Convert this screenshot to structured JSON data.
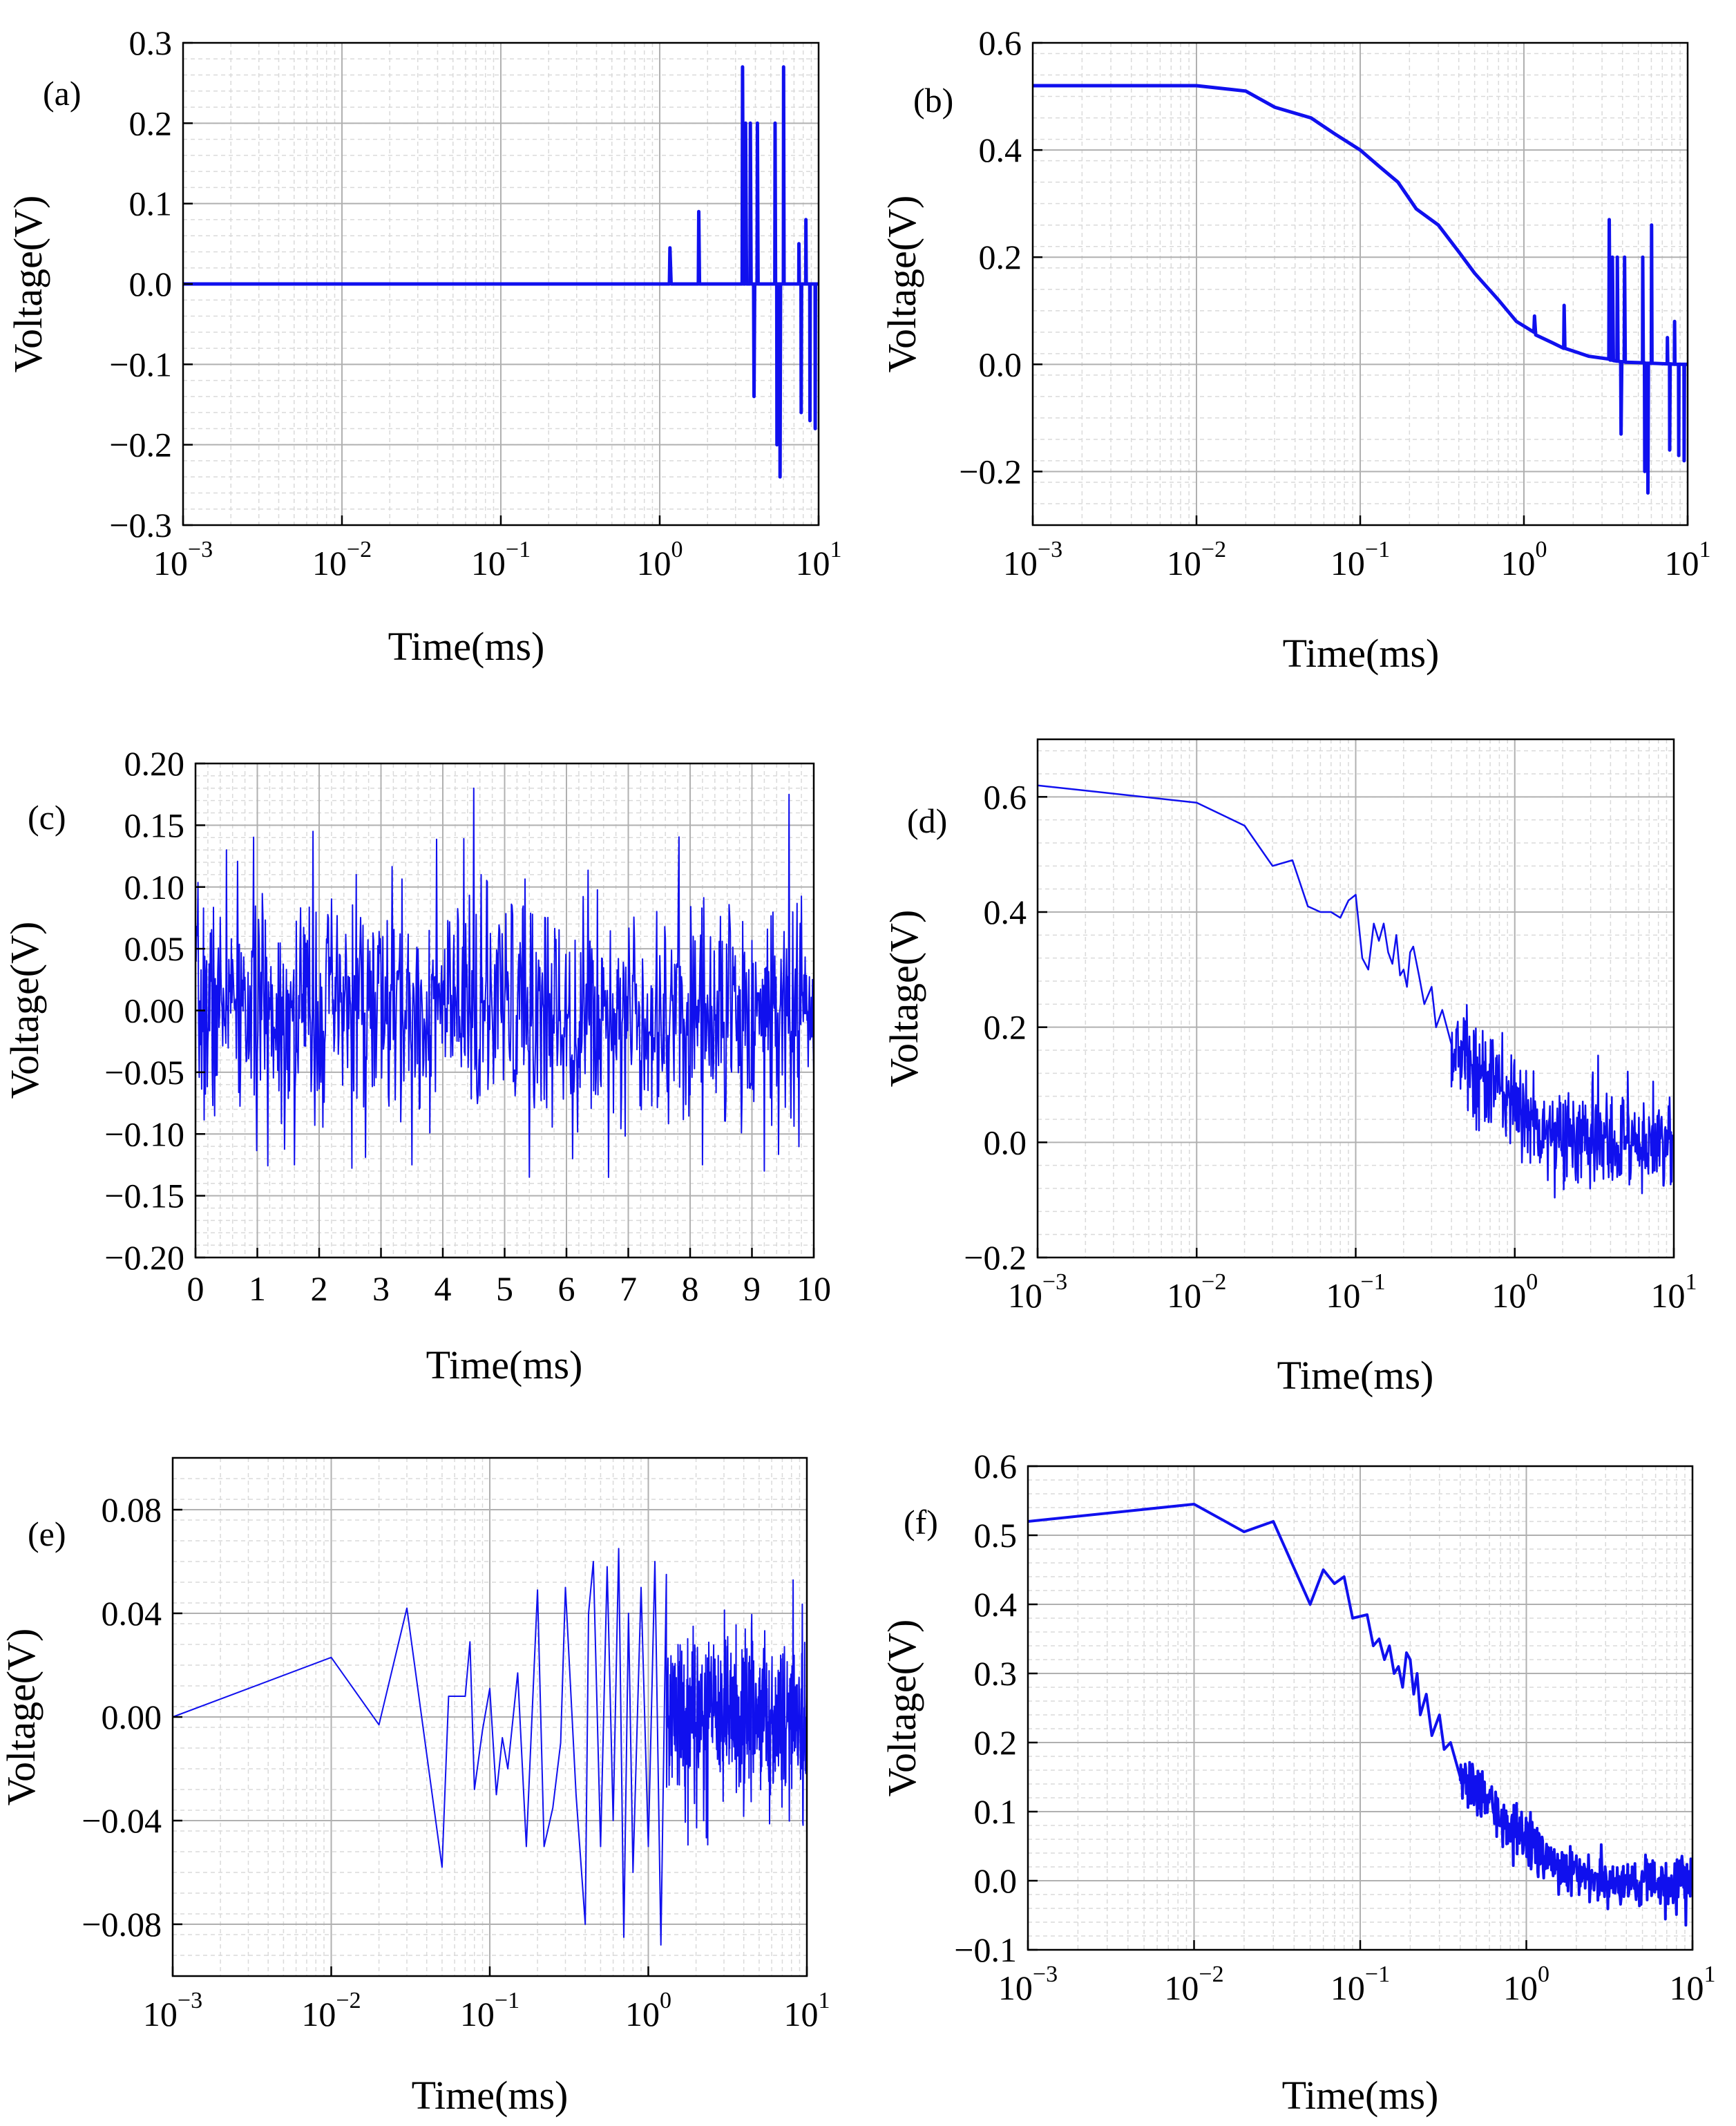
{
  "figure": {
    "type": "multi-panel time-series",
    "panel_count": 6
  },
  "colors": {
    "line": "#1010ee",
    "grid_major": "#b0b0b0",
    "grid_minor": "#dadada",
    "axis": "#000000"
  },
  "chart_data": [
    {
      "id": "a",
      "panel_label": "(a)",
      "type": "line",
      "xscale": "log",
      "xlim": [
        0.001,
        10
      ],
      "ylim": [
        -0.3,
        0.3
      ],
      "xlabel": "Time(ms)",
      "ylabel": "Voltage(V)",
      "xticks": [
        0.001,
        0.01,
        0.1,
        1,
        10
      ],
      "xtick_labels": [
        [
          "10",
          "−3"
        ],
        [
          "10",
          "−2"
        ],
        [
          "10",
          "−1"
        ],
        [
          "10",
          "0"
        ],
        [
          "10",
          "1"
        ]
      ],
      "yticks": [
        -0.3,
        -0.2,
        -0.1,
        0.0,
        0.1,
        0.2,
        0.3
      ],
      "ytick_labels": [
        "−0.3",
        "−0.2",
        "−0.1",
        "0.0",
        "0.1",
        "0.2",
        "0.3"
      ],
      "line_width": 5,
      "points": [
        [
          0.001,
          0.0
        ],
        [
          1.15,
          0.0
        ],
        [
          1.16,
          0.045
        ],
        [
          1.18,
          0.0
        ],
        [
          1.75,
          0.0
        ],
        [
          1.76,
          0.09
        ],
        [
          1.78,
          0.0
        ],
        [
          3.3,
          0.0
        ],
        [
          3.32,
          0.27
        ],
        [
          3.36,
          0.0
        ],
        [
          3.45,
          0.0
        ],
        [
          3.47,
          0.2
        ],
        [
          3.52,
          0.0
        ],
        [
          3.7,
          0.0
        ],
        [
          3.72,
          0.2
        ],
        [
          3.76,
          0.0
        ],
        [
          3.9,
          0.0
        ],
        [
          3.92,
          -0.14
        ],
        [
          3.96,
          0.0
        ],
        [
          4.1,
          0.0
        ],
        [
          4.12,
          0.2
        ],
        [
          4.16,
          0.0
        ],
        [
          5.3,
          0.0
        ],
        [
          5.32,
          0.2
        ],
        [
          5.36,
          0.0
        ],
        [
          5.45,
          0.0
        ],
        [
          5.47,
          -0.2
        ],
        [
          5.52,
          0.0
        ],
        [
          5.7,
          0.0
        ],
        [
          5.72,
          -0.24
        ],
        [
          5.76,
          0.0
        ],
        [
          6.0,
          0.0
        ],
        [
          6.02,
          0.27
        ],
        [
          6.06,
          0.0
        ],
        [
          7.5,
          0.0
        ],
        [
          7.52,
          0.05
        ],
        [
          7.56,
          0.0
        ],
        [
          7.75,
          0.0
        ],
        [
          7.77,
          -0.16
        ],
        [
          7.82,
          0.0
        ],
        [
          8.3,
          0.0
        ],
        [
          8.32,
          0.08
        ],
        [
          8.36,
          0.0
        ],
        [
          8.8,
          0.0
        ],
        [
          8.82,
          -0.17
        ],
        [
          8.86,
          0.0
        ],
        [
          9.5,
          0.0
        ],
        [
          9.52,
          -0.18
        ],
        [
          9.56,
          0.0
        ],
        [
          10.0,
          0.0
        ]
      ]
    },
    {
      "id": "b",
      "panel_label": "(b)",
      "type": "line",
      "xscale": "log",
      "xlim": [
        0.001,
        10
      ],
      "ylim": [
        -0.3,
        0.6
      ],
      "xlabel": "Time(ms)",
      "ylabel": "Voltage(V)",
      "xticks": [
        0.001,
        0.01,
        0.1,
        1,
        10
      ],
      "xtick_labels": [
        [
          "10",
          "−3"
        ],
        [
          "10",
          "−2"
        ],
        [
          "10",
          "−1"
        ],
        [
          "10",
          "0"
        ],
        [
          "10",
          "1"
        ]
      ],
      "yticks": [
        -0.2,
        0.0,
        0.2,
        0.4,
        0.6
      ],
      "ytick_labels": [
        "−0.2",
        "0.0",
        "0.2",
        "0.4",
        "0.6"
      ],
      "line_width": 5,
      "points": [
        [
          0.001,
          0.52
        ],
        [
          0.01,
          0.52
        ],
        [
          0.02,
          0.51
        ],
        [
          0.03,
          0.48
        ],
        [
          0.05,
          0.46
        ],
        [
          0.07,
          0.43
        ],
        [
          0.1,
          0.4
        ],
        [
          0.13,
          0.37
        ],
        [
          0.17,
          0.34
        ],
        [
          0.22,
          0.29
        ],
        [
          0.3,
          0.26
        ],
        [
          0.4,
          0.21
        ],
        [
          0.5,
          0.17
        ],
        [
          0.7,
          0.12
        ],
        [
          0.9,
          0.08
        ],
        [
          1.15,
          0.06
        ],
        [
          1.16,
          0.09
        ],
        [
          1.18,
          0.055
        ],
        [
          1.5,
          0.04
        ],
        [
          1.75,
          0.03
        ],
        [
          1.76,
          0.11
        ],
        [
          1.78,
          0.03
        ],
        [
          2.5,
          0.015
        ],
        [
          3.3,
          0.01
        ],
        [
          3.32,
          0.27
        ],
        [
          3.36,
          0.008
        ],
        [
          3.45,
          0.008
        ],
        [
          3.47,
          0.2
        ],
        [
          3.52,
          0.007
        ],
        [
          3.7,
          0.006
        ],
        [
          3.72,
          0.2
        ],
        [
          3.76,
          0.006
        ],
        [
          3.9,
          0.005
        ],
        [
          3.92,
          -0.13
        ],
        [
          3.96,
          0.005
        ],
        [
          4.1,
          0.005
        ],
        [
          4.12,
          0.2
        ],
        [
          4.16,
          0.004
        ],
        [
          5.3,
          0.003
        ],
        [
          5.32,
          0.2
        ],
        [
          5.36,
          0.003
        ],
        [
          5.45,
          0.003
        ],
        [
          5.47,
          -0.2
        ],
        [
          5.52,
          0.002
        ],
        [
          5.7,
          0.002
        ],
        [
          5.72,
          -0.24
        ],
        [
          5.76,
          0.002
        ],
        [
          6.0,
          0.002
        ],
        [
          6.02,
          0.26
        ],
        [
          6.06,
          0.002
        ],
        [
          7.5,
          0.001
        ],
        [
          7.52,
          0.05
        ],
        [
          7.56,
          0.001
        ],
        [
          7.75,
          0.001
        ],
        [
          7.77,
          -0.16
        ],
        [
          7.82,
          0.001
        ],
        [
          8.3,
          0.0
        ],
        [
          8.32,
          0.08
        ],
        [
          8.36,
          0.0
        ],
        [
          8.8,
          0.0
        ],
        [
          8.82,
          -0.17
        ],
        [
          8.86,
          0.0
        ],
        [
          9.5,
          0.0
        ],
        [
          9.52,
          -0.18
        ],
        [
          9.56,
          0.0
        ],
        [
          10.0,
          0.0
        ]
      ]
    },
    {
      "id": "c",
      "panel_label": "(c)",
      "type": "line",
      "xscale": "linear",
      "xlim": [
        0,
        10
      ],
      "ylim": [
        -0.2,
        0.2
      ],
      "xlabel": "Time(ms)",
      "ylabel": "Voltage(V)",
      "xticks": [
        0,
        1,
        2,
        3,
        4,
        5,
        6,
        7,
        8,
        9,
        10
      ],
      "xtick_labels": [
        "0",
        "1",
        "2",
        "3",
        "4",
        "5",
        "6",
        "7",
        "8",
        "9",
        "10"
      ],
      "yticks": [
        -0.2,
        -0.15,
        -0.1,
        -0.05,
        0.0,
        0.05,
        0.1,
        0.15,
        0.2
      ],
      "ytick_labels": [
        "−0.20",
        "−0.15",
        "−0.10",
        "−0.05",
        "0.00",
        "0.05",
        "0.10",
        "0.15",
        "0.20"
      ],
      "line_width": 2,
      "noise": {
        "x_start": 0,
        "x_end": 10,
        "samples": 1000,
        "base": 0.0,
        "sigma": 0.045,
        "seed": 7
      },
      "spikes": [
        [
          0.5,
          0.13
        ],
        [
          1.9,
          0.145
        ],
        [
          2.6,
          0.11
        ],
        [
          4.5,
          0.18
        ],
        [
          9.6,
          0.175
        ],
        [
          3.5,
          -0.125
        ],
        [
          5.4,
          -0.135
        ],
        [
          6.1,
          -0.12
        ],
        [
          8.2,
          -0.125
        ],
        [
          9.2,
          -0.13
        ],
        [
          1.6,
          -0.125
        ]
      ]
    },
    {
      "id": "d",
      "panel_label": "(d)",
      "type": "line",
      "xscale": "log",
      "xlim": [
        0.001,
        10
      ],
      "ylim": [
        -0.2,
        0.7
      ],
      "xlabel": "Time(ms)",
      "ylabel": "Voltage(V)",
      "xticks": [
        0.001,
        0.01,
        0.1,
        1,
        10
      ],
      "xtick_labels": [
        [
          "10",
          "−3"
        ],
        [
          "10",
          "−2"
        ],
        [
          "10",
          "−1"
        ],
        [
          "10",
          "0"
        ],
        [
          "10",
          "1"
        ]
      ],
      "yticks": [
        -0.2,
        0.0,
        0.2,
        0.4,
        0.6
      ],
      "ytick_labels": [
        "−0.2",
        "0.0",
        "0.2",
        "0.4",
        "0.6"
      ],
      "line_width": 2.5,
      "points": [
        [
          0.001,
          0.62
        ],
        [
          0.01,
          0.59
        ],
        [
          0.02,
          0.55
        ],
        [
          0.03,
          0.48
        ],
        [
          0.04,
          0.49
        ],
        [
          0.05,
          0.41
        ],
        [
          0.06,
          0.4
        ],
        [
          0.07,
          0.4
        ],
        [
          0.08,
          0.39
        ],
        [
          0.09,
          0.42
        ],
        [
          0.1,
          0.43
        ],
        [
          0.11,
          0.32
        ],
        [
          0.12,
          0.3
        ],
        [
          0.13,
          0.38
        ],
        [
          0.14,
          0.35
        ],
        [
          0.15,
          0.38
        ],
        [
          0.16,
          0.33
        ],
        [
          0.17,
          0.31
        ],
        [
          0.18,
          0.36
        ],
        [
          0.19,
          0.29
        ],
        [
          0.2,
          0.3
        ],
        [
          0.21,
          0.27
        ],
        [
          0.22,
          0.33
        ],
        [
          0.23,
          0.34
        ],
        [
          0.25,
          0.29
        ],
        [
          0.27,
          0.24
        ],
        [
          0.3,
          0.27
        ],
        [
          0.32,
          0.2
        ],
        [
          0.35,
          0.23
        ],
        [
          0.4,
          0.17
        ]
      ],
      "noise": {
        "x_start": 0.4,
        "x_end": 10,
        "samples": 420,
        "base": "exp-decay 0.17 to 0.0",
        "sigma": 0.045,
        "seed": 13
      }
    },
    {
      "id": "e",
      "panel_label": "(e)",
      "type": "line",
      "xscale": "log",
      "xlim": [
        0.001,
        10
      ],
      "ylim": [
        -0.1,
        0.1
      ],
      "xlabel": "Time(ms)",
      "ylabel": "Voltage(V)",
      "xticks": [
        0.001,
        0.01,
        0.1,
        1,
        10
      ],
      "xtick_labels": [
        [
          "10",
          "−3"
        ],
        [
          "10",
          "−2"
        ],
        [
          "10",
          "−1"
        ],
        [
          "10",
          "0"
        ],
        [
          "10",
          "1"
        ]
      ],
      "yticks": [
        -0.08,
        -0.04,
        0.0,
        0.04,
        0.08
      ],
      "ytick_labels": [
        "−0.08",
        "−0.04",
        "0.00",
        "0.04",
        "0.08"
      ],
      "line_width": 2,
      "points": [
        [
          0.001,
          0.0
        ],
        [
          0.01,
          0.023
        ],
        [
          0.02,
          -0.003
        ],
        [
          0.03,
          0.042
        ],
        [
          0.05,
          -0.058
        ],
        [
          0.055,
          0.008
        ],
        [
          0.06,
          0.008
        ],
        [
          0.07,
          0.008
        ],
        [
          0.075,
          0.029
        ],
        [
          0.08,
          -0.028
        ],
        [
          0.09,
          -0.005
        ],
        [
          0.1,
          0.011
        ],
        [
          0.11,
          -0.03
        ],
        [
          0.12,
          -0.008
        ],
        [
          0.13,
          -0.02
        ],
        [
          0.15,
          0.017
        ],
        [
          0.17,
          -0.05
        ],
        [
          0.2,
          0.049
        ],
        [
          0.22,
          -0.05
        ],
        [
          0.25,
          -0.035
        ],
        [
          0.28,
          -0.01
        ],
        [
          0.3,
          0.05
        ],
        [
          0.35,
          -0.03
        ],
        [
          0.4,
          -0.08
        ],
        [
          0.42,
          0.04
        ],
        [
          0.45,
          0.06
        ],
        [
          0.5,
          -0.05
        ],
        [
          0.55,
          0.058
        ],
        [
          0.6,
          -0.04
        ],
        [
          0.65,
          0.065
        ],
        [
          0.7,
          -0.085
        ],
        [
          0.75,
          0.04
        ],
        [
          0.8,
          -0.06
        ],
        [
          0.9,
          0.05
        ],
        [
          1.0,
          -0.05
        ],
        [
          1.1,
          0.06
        ],
        [
          1.2,
          -0.088
        ],
        [
          1.3,
          0.055
        ]
      ],
      "noise": {
        "x_start": 1.3,
        "x_end": 10,
        "samples": 520,
        "base": 0.0,
        "sigma": 0.016,
        "seed": 21
      }
    },
    {
      "id": "f",
      "panel_label": "(f)",
      "type": "line",
      "xscale": "log",
      "xlim": [
        0.001,
        10
      ],
      "ylim": [
        -0.1,
        0.6
      ],
      "xlabel": "Time(ms)",
      "ylabel": "Voltage(V)",
      "xticks": [
        0.001,
        0.01,
        0.1,
        1,
        10
      ],
      "xtick_labels": [
        [
          "10",
          "−3"
        ],
        [
          "10",
          "−2"
        ],
        [
          "10",
          "−1"
        ],
        [
          "10",
          "0"
        ],
        [
          "10",
          "1"
        ]
      ],
      "yticks": [
        -0.1,
        0.0,
        0.1,
        0.2,
        0.3,
        0.4,
        0.5,
        0.6
      ],
      "ytick_labels": [
        "−0.1",
        "0.0",
        "0.1",
        "0.2",
        "0.3",
        "0.4",
        "0.5",
        "0.6"
      ],
      "line_width": 4,
      "points": [
        [
          0.001,
          0.52
        ],
        [
          0.01,
          0.545
        ],
        [
          0.02,
          0.505
        ],
        [
          0.03,
          0.52
        ],
        [
          0.05,
          0.4
        ],
        [
          0.06,
          0.45
        ],
        [
          0.07,
          0.43
        ],
        [
          0.08,
          0.44
        ],
        [
          0.09,
          0.38
        ],
        [
          0.11,
          0.385
        ],
        [
          0.12,
          0.34
        ],
        [
          0.13,
          0.35
        ],
        [
          0.14,
          0.32
        ],
        [
          0.15,
          0.34
        ],
        [
          0.16,
          0.3
        ],
        [
          0.17,
          0.31
        ],
        [
          0.18,
          0.28
        ],
        [
          0.19,
          0.33
        ],
        [
          0.2,
          0.32
        ],
        [
          0.21,
          0.27
        ],
        [
          0.22,
          0.3
        ],
        [
          0.23,
          0.24
        ],
        [
          0.25,
          0.27
        ],
        [
          0.27,
          0.21
        ],
        [
          0.3,
          0.24
        ],
        [
          0.32,
          0.19
        ],
        [
          0.35,
          0.2
        ],
        [
          0.4,
          0.15
        ]
      ],
      "noise": {
        "x_start": 0.4,
        "x_end": 10,
        "samples": 420,
        "base": "exp-decay 0.15 to 0.0",
        "sigma": 0.018,
        "seed": 33
      }
    }
  ]
}
